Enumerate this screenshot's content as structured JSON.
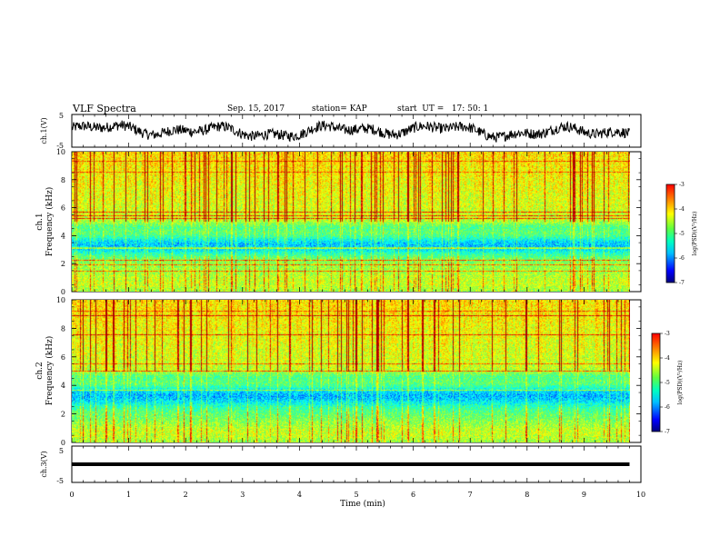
{
  "header": {
    "title": "VLF Spectra",
    "date": "Sep. 15, 2017",
    "station": "station= KAP",
    "start": "start  UT =   17: 50: 1"
  },
  "chart_data": [
    {
      "type": "line",
      "name": "ch1-waveform",
      "ylabel": "ch.1(V)",
      "ylim": [
        -5,
        5
      ],
      "y_ticks": [
        "5",
        "-5"
      ],
      "xlim": [
        0,
        10
      ],
      "trace_color": "#000000"
    },
    {
      "type": "heatmap",
      "name": "ch1-spectrogram",
      "ylabel": "ch.1\nFrequency (kHz)",
      "ylabel_lines": [
        "ch.1",
        "Frequency (kHz)"
      ],
      "ylim": [
        0,
        10
      ],
      "y_ticks": [
        "0",
        "2",
        "4",
        "6",
        "8",
        "10"
      ],
      "xlim": [
        0,
        9.8
      ],
      "colorbar": {
        "label": "log(PSD)(V²/Hz)",
        "range": [
          -7,
          -3
        ],
        "ticks": [
          "-3",
          "-4",
          "-5",
          "-6",
          "-7"
        ]
      }
    },
    {
      "type": "heatmap",
      "name": "ch2-spectrogram",
      "ylabel": "ch.2\nFrequency (kHz)",
      "ylabel_lines": [
        "ch.2",
        "Frequency (kHz)"
      ],
      "ylim": [
        0,
        10
      ],
      "y_ticks": [
        "0",
        "2",
        "4",
        "6",
        "8",
        "10"
      ],
      "xlim": [
        0,
        9.8
      ],
      "colorbar": {
        "label": "log(PSD)(V²/Hz)",
        "range": [
          -7,
          -3
        ],
        "ticks": [
          "-3",
          "-4",
          "-5",
          "-6",
          "-7"
        ]
      }
    },
    {
      "type": "line",
      "name": "ch3-waveform",
      "ylabel": "ch.3(V)",
      "ylim": [
        -5,
        5
      ],
      "y_ticks": [
        "5",
        "-5"
      ],
      "y_value": 0,
      "xlim": [
        0,
        9.8
      ],
      "trace_color": "#000000"
    }
  ],
  "x_axis": {
    "label": "Time (min)",
    "range": [
      0,
      10
    ],
    "ticks": [
      "0",
      "1",
      "2",
      "3",
      "4",
      "5",
      "6",
      "7",
      "8",
      "9",
      "10"
    ]
  },
  "colormap": [
    "#00007f",
    "#0000ff",
    "#00a0ff",
    "#00ffff",
    "#40ff90",
    "#a0ff40",
    "#ffff00",
    "#ff8000",
    "#ff0000",
    "#900000"
  ]
}
